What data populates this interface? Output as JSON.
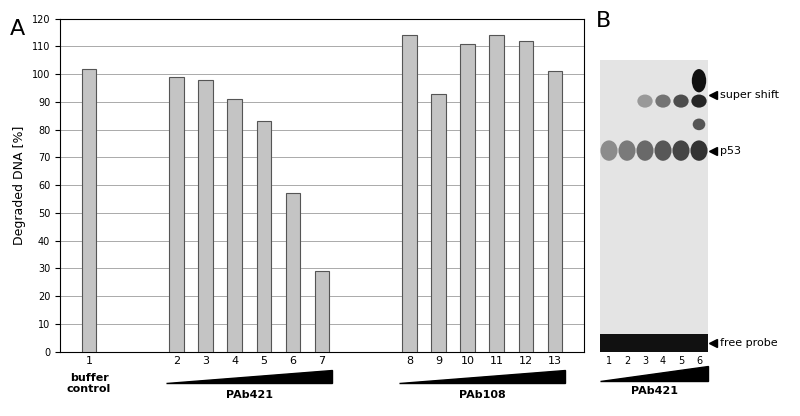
{
  "panel_labels": [
    "A",
    "B"
  ],
  "chart_data": {
    "type": "bar",
    "y_label": "Degraded DNA [%]",
    "categories": [
      "1",
      null,
      null,
      "2",
      "3",
      "4",
      "5",
      "6",
      "7",
      null,
      null,
      "8",
      "9",
      "10",
      "11",
      "12",
      "13"
    ],
    "values": [
      102,
      null,
      null,
      99,
      98,
      91,
      83,
      57,
      29,
      null,
      null,
      114,
      93,
      111,
      114,
      112,
      101
    ],
    "color": "#c4c4c4",
    "ylim": [
      0,
      120
    ],
    "yticks": [
      0,
      10,
      20,
      30,
      40,
      50,
      60,
      70,
      80,
      90,
      100,
      110,
      120
    ],
    "grid": true,
    "annotations": [
      "buffer\ncontrol",
      "PAb421",
      "PAb108"
    ]
  },
  "gel": {
    "lanes": [
      "1",
      "2",
      "3",
      "4",
      "5",
      "6"
    ],
    "bands": [
      "super shift",
      "p53",
      "free probe"
    ],
    "antibody": "PAb421"
  }
}
